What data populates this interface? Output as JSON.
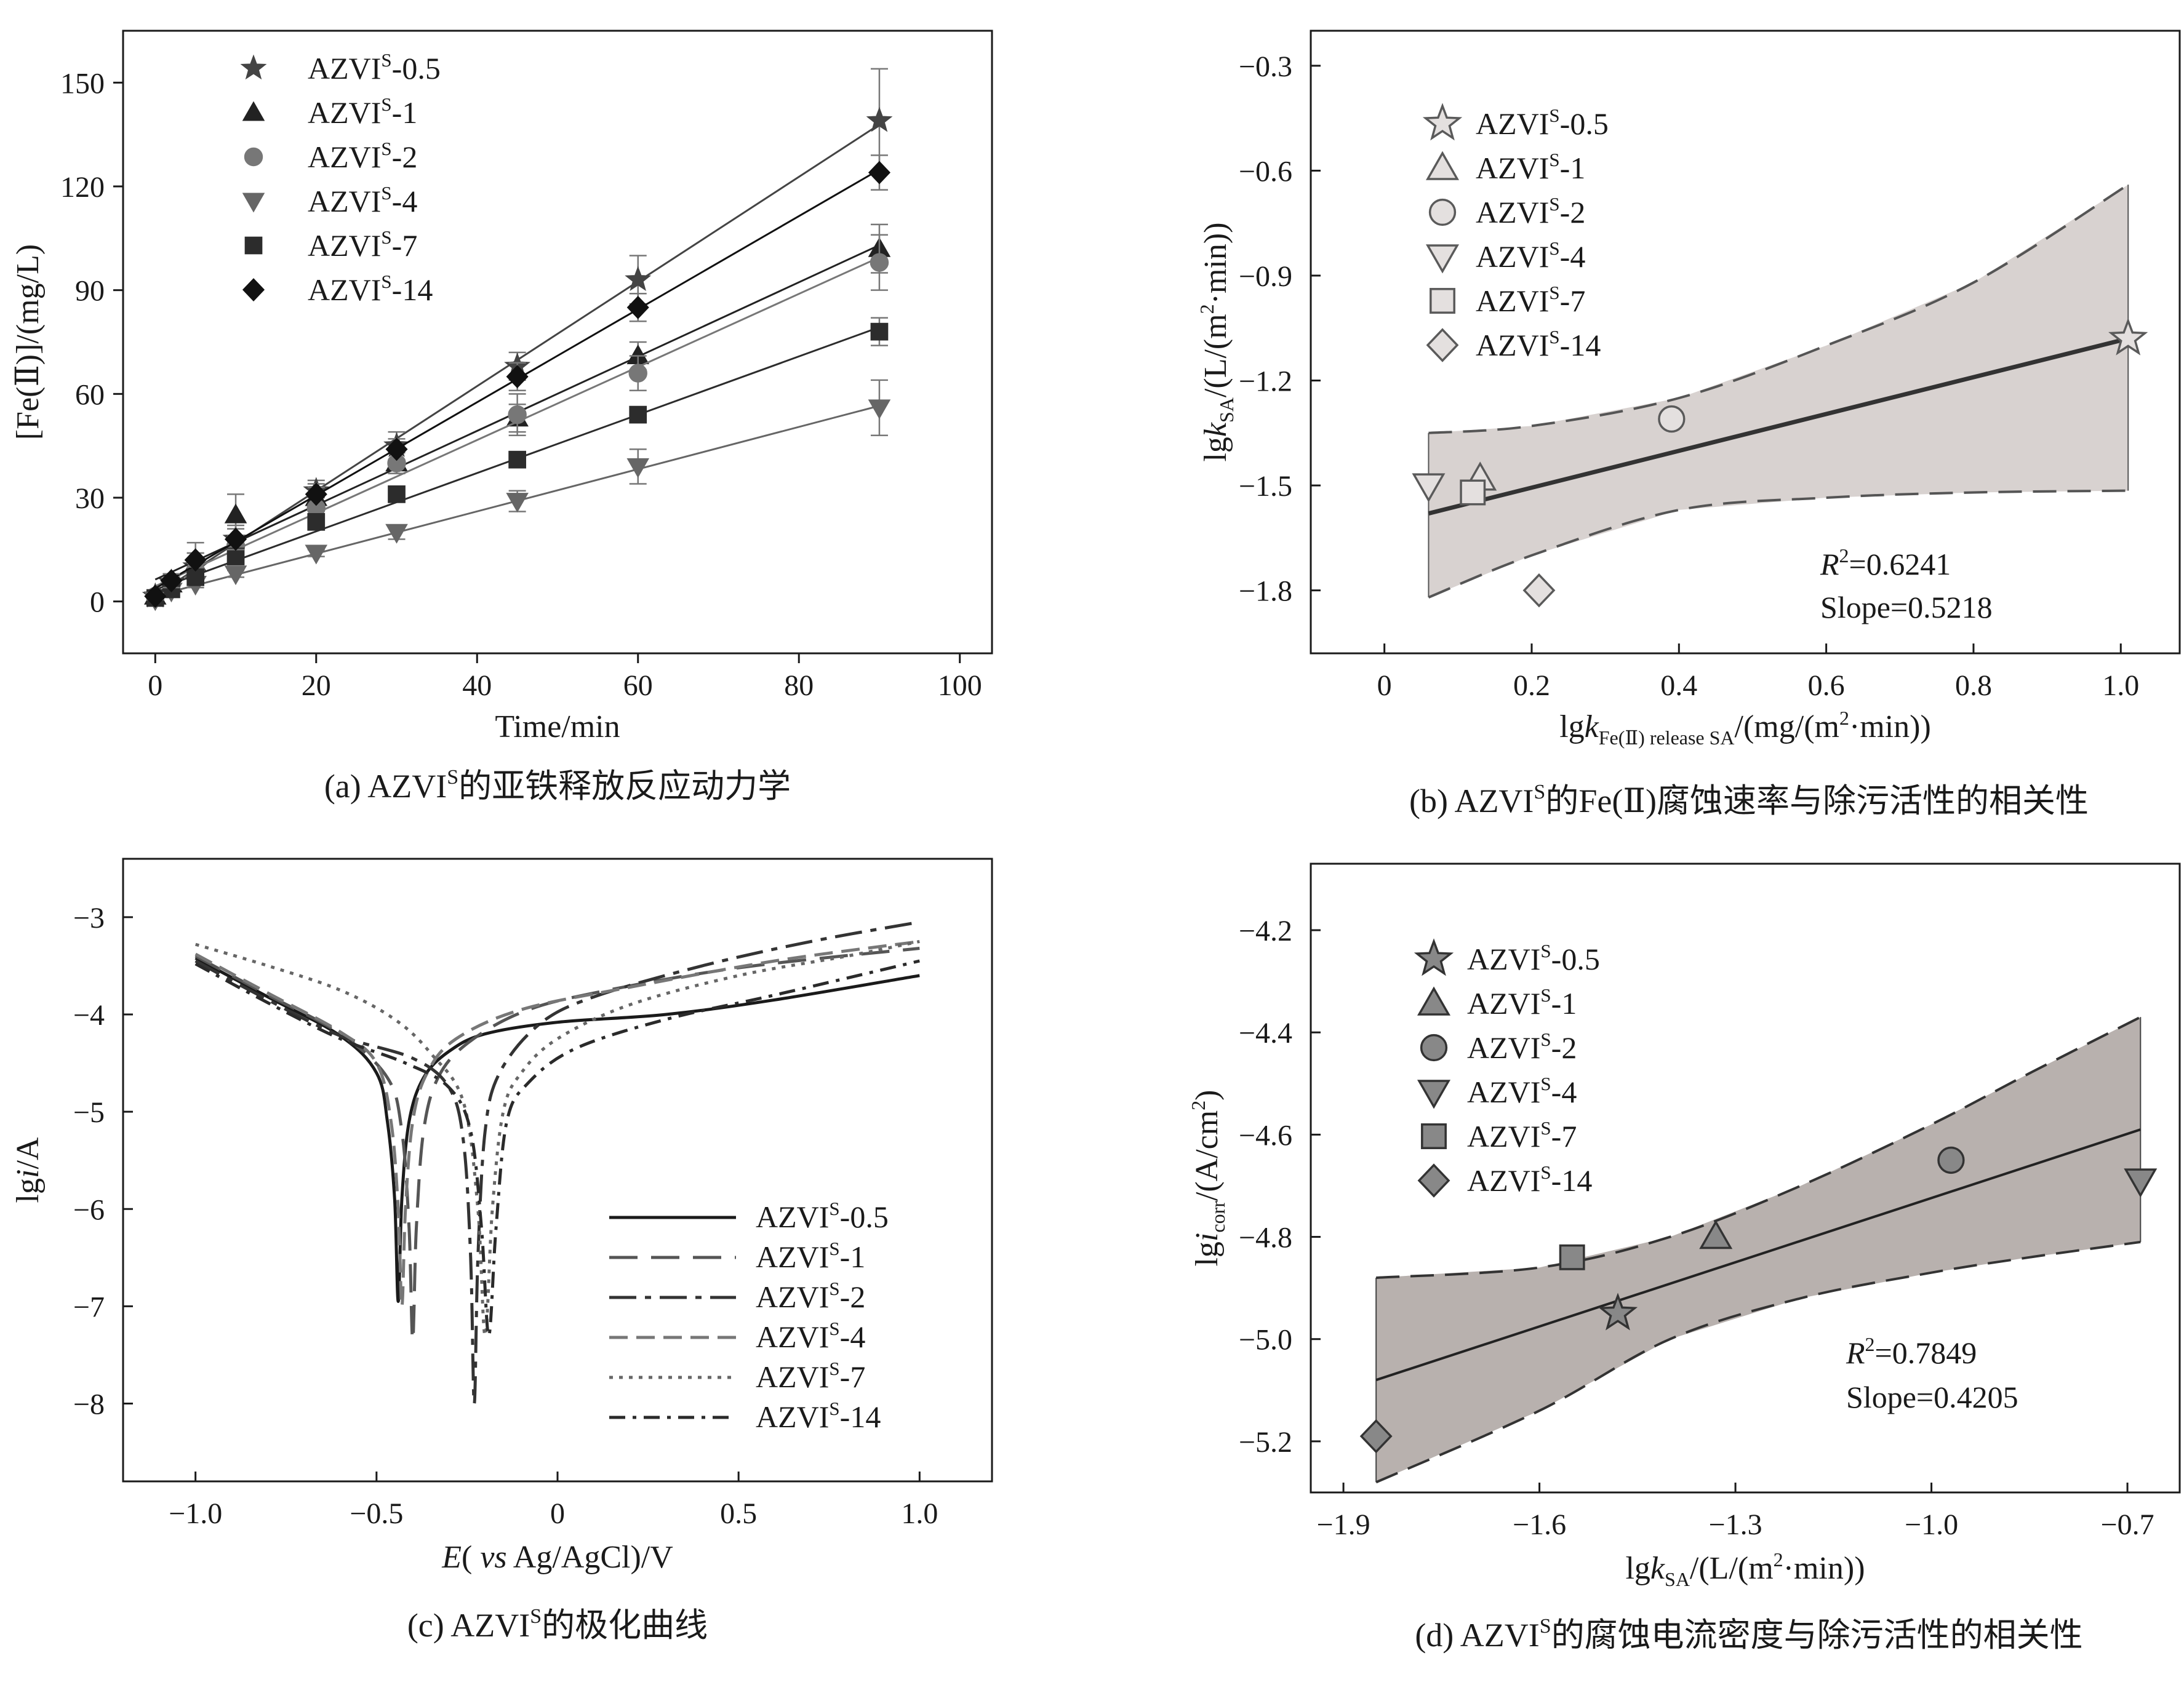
{
  "chart_data": [
    {
      "id": "a",
      "type": "line",
      "caption": "(a) AZVIˢ的亚铁释放反应动力学",
      "xlabel": "Time/min",
      "ylabel": "[Fe(Ⅱ)]/(mg/L)",
      "xlim": [
        -4,
        104
      ],
      "ylim": [
        -15,
        165
      ],
      "xticks": [
        0,
        20,
        40,
        60,
        80,
        100
      ],
      "yticks": [
        0,
        30,
        60,
        90,
        120,
        150
      ],
      "x": [
        0,
        2,
        5,
        10,
        20,
        30,
        45,
        60,
        90
      ],
      "series": [
        {
          "name": "AZVIˢ-0.5",
          "marker": "star",
          "values": [
            1.5,
            5.5,
            10,
            18,
            32,
            45,
            68,
            93,
            139
          ],
          "error": [
            1,
            2,
            4,
            4,
            3,
            4,
            4,
            7,
            15
          ]
        },
        {
          "name": "AZVIˢ-1",
          "marker": "triangle-up",
          "values": [
            1.5,
            5,
            11,
            25,
            30,
            40,
            53,
            71,
            102
          ],
          "error": [
            1,
            2,
            6,
            6,
            3,
            3,
            4,
            4,
            7
          ]
        },
        {
          "name": "AZVIˢ-2",
          "marker": "circle",
          "values": [
            1.5,
            5,
            9,
            16,
            27,
            40,
            54,
            66,
            98
          ],
          "error": [
            1,
            2,
            2,
            2,
            3,
            3,
            6,
            5,
            8
          ]
        },
        {
          "name": "AZVIˢ-4",
          "marker": "triangle-down",
          "values": [
            0.5,
            3,
            5,
            8,
            14,
            20,
            29,
            39,
            56
          ],
          "error": [
            1,
            1,
            1,
            1,
            1,
            2,
            3,
            5,
            8
          ]
        },
        {
          "name": "AZVIˢ-7",
          "marker": "square",
          "values": [
            1,
            3.5,
            7,
            13,
            23,
            31,
            41,
            54,
            78
          ],
          "error": [
            1,
            1,
            1,
            2,
            2,
            2,
            2,
            2,
            4
          ]
        },
        {
          "name": "AZVIˢ-14",
          "marker": "diamond",
          "values": [
            1.5,
            6,
            12,
            18,
            31,
            44,
            65,
            85,
            124
          ],
          "error": [
            1,
            2,
            2,
            3,
            3,
            3,
            4,
            4,
            5
          ]
        }
      ]
    },
    {
      "id": "b",
      "type": "scatter",
      "caption": "(b) AZVIˢ的Fe(Ⅱ)腐蚀速率与除污活性的相关性",
      "xlabel": "lgk_Fe(Ⅱ) release SA/(mg/(m²·min))",
      "ylabel": "lgk_SA/(L/(m²·min))",
      "xlim": [
        -0.1,
        1.08
      ],
      "ylim": [
        -1.98,
        -0.2
      ],
      "xticks": [
        0,
        0.2,
        0.4,
        0.6,
        0.8,
        1.0
      ],
      "xtick_labels": [
        "0",
        "0.2",
        "0.4",
        "0.6",
        "0.8",
        "1.0"
      ],
      "yticks": [
        -1.8,
        -1.5,
        -1.2,
        -0.9,
        -0.6,
        -0.3
      ],
      "ytick_labels": [
        "−1.8",
        "−1.5",
        "−1.2",
        "−0.9",
        "−0.6",
        "−0.3"
      ],
      "points": [
        {
          "name": "AZVIˢ-0.5",
          "marker": "star",
          "x": 1.01,
          "y": -1.08
        },
        {
          "name": "AZVIˢ-1",
          "marker": "triangle-up",
          "x": 0.13,
          "y": -1.48
        },
        {
          "name": "AZVIˢ-2",
          "marker": "circle",
          "x": 0.39,
          "y": -1.31
        },
        {
          "name": "AZVIˢ-4",
          "marker": "triangle-down",
          "x": 0.06,
          "y": -1.5
        },
        {
          "name": "AZVIˢ-7",
          "marker": "square",
          "x": 0.12,
          "y": -1.52
        },
        {
          "name": "AZVIˢ-14",
          "marker": "diamond",
          "x": 0.21,
          "y": -1.8
        }
      ],
      "fit": {
        "x": [
          0.06,
          1.01
        ],
        "y": [
          -1.58,
          -1.08
        ]
      },
      "band_upper": {
        "x": [
          0.06,
          0.2,
          0.4,
          0.6,
          0.8,
          1.01
        ],
        "y": [
          -1.35,
          -1.33,
          -1.25,
          -1.1,
          -0.92,
          -0.64
        ]
      },
      "band_lower": {
        "x": [
          0.06,
          0.2,
          0.4,
          0.6,
          0.8,
          1.01
        ],
        "y": [
          -1.82,
          -1.7,
          -1.57,
          -1.535,
          -1.52,
          -1.515
        ]
      },
      "stats": {
        "r2_label": "R",
        "r2_sup": "2",
        "r2_value": "=0.6241",
        "slope": "Slope=0.5218"
      }
    },
    {
      "id": "c",
      "type": "line",
      "caption": "(c) AZVIˢ的极化曲线",
      "xlabel_italic": "E",
      "xlabel_rest": "( vs Ag/AgCl)/V",
      "ylabel_italic": "i",
      "ylabel": "lgi/A",
      "xlim": [
        -1.2,
        1.2
      ],
      "ylim": [
        -8.8,
        -2.4
      ],
      "xticks": [
        -1.0,
        -0.5,
        0,
        0.5,
        1.0
      ],
      "xtick_labels": [
        "−1.0",
        "−0.5",
        "0",
        "0.5",
        "1.0"
      ],
      "yticks": [
        -8,
        -7,
        -6,
        -5,
        -4,
        -3
      ],
      "ytick_labels": [
        "−8",
        "−7",
        "−6",
        "−5",
        "−4",
        "−3"
      ],
      "series": [
        {
          "name": "AZVIˢ-0.5",
          "dash": "solid",
          "ecorr": -0.44,
          "imin": -6.95,
          "left": [
            [
              -1.0,
              -3.42
            ],
            [
              -0.8,
              -3.82
            ],
            [
              -0.6,
              -4.22
            ],
            [
              -0.5,
              -4.6
            ],
            [
              -0.47,
              -5.1
            ],
            [
              -0.45,
              -5.9
            ]
          ],
          "right": [
            [
              -0.43,
              -5.9
            ],
            [
              -0.41,
              -5.1
            ],
            [
              -0.37,
              -4.65
            ],
            [
              -0.3,
              -4.38
            ],
            [
              -0.2,
              -4.2
            ],
            [
              0,
              -4.08
            ],
            [
              0.3,
              -4.0
            ],
            [
              0.6,
              -3.85
            ],
            [
              1.0,
              -3.6
            ]
          ]
        },
        {
          "name": "AZVIˢ-1",
          "dash": "longdash",
          "ecorr": -0.4,
          "imin": -7.35,
          "left": [
            [
              -1.0,
              -3.4
            ],
            [
              -0.8,
              -3.8
            ],
            [
              -0.6,
              -4.2
            ],
            [
              -0.47,
              -4.65
            ],
            [
              -0.43,
              -5.2
            ],
            [
              -0.41,
              -6.2
            ]
          ],
          "right": [
            [
              -0.39,
              -6.2
            ],
            [
              -0.37,
              -5.2
            ],
            [
              -0.33,
              -4.65
            ],
            [
              -0.25,
              -4.3
            ],
            [
              -0.1,
              -3.98
            ],
            [
              0.1,
              -3.78
            ],
            [
              0.5,
              -3.52
            ],
            [
              1.0,
              -3.32
            ]
          ]
        },
        {
          "name": "AZVIˢ-2",
          "dash": "dashdot-long",
          "ecorr": -0.23,
          "imin": -8.0,
          "left": [
            [
              -1.0,
              -3.45
            ],
            [
              -0.8,
              -3.85
            ],
            [
              -0.6,
              -4.22
            ],
            [
              -0.4,
              -4.45
            ],
            [
              -0.3,
              -4.75
            ],
            [
              -0.26,
              -5.3
            ],
            [
              -0.24,
              -6.5
            ]
          ],
          "right": [
            [
              -0.22,
              -6.5
            ],
            [
              -0.2,
              -5.2
            ],
            [
              -0.16,
              -4.6
            ],
            [
              -0.05,
              -4.1
            ],
            [
              0.1,
              -3.82
            ],
            [
              0.4,
              -3.5
            ],
            [
              0.7,
              -3.25
            ],
            [
              1.0,
              -3.05
            ]
          ]
        },
        {
          "name": "AZVIˢ-4",
          "dash": "dash",
          "ecorr": -0.43,
          "imin": -7.0,
          "left": [
            [
              -1.0,
              -3.38
            ],
            [
              -0.8,
              -3.78
            ],
            [
              -0.6,
              -4.18
            ],
            [
              -0.5,
              -4.5
            ],
            [
              -0.46,
              -5.1
            ],
            [
              -0.44,
              -6.0
            ]
          ],
          "right": [
            [
              -0.42,
              -6.0
            ],
            [
              -0.4,
              -5.1
            ],
            [
              -0.36,
              -4.6
            ],
            [
              -0.28,
              -4.25
            ],
            [
              -0.1,
              -3.95
            ],
            [
              0.2,
              -3.72
            ],
            [
              0.6,
              -3.45
            ],
            [
              1.0,
              -3.25
            ]
          ]
        },
        {
          "name": "AZVIˢ-7",
          "dash": "dotted",
          "ecorr": -0.2,
          "imin": -7.3,
          "left": [
            [
              -1.0,
              -3.28
            ],
            [
              -0.8,
              -3.5
            ],
            [
              -0.6,
              -3.75
            ],
            [
              -0.45,
              -4.05
            ],
            [
              -0.35,
              -4.4
            ],
            [
              -0.26,
              -4.9
            ],
            [
              -0.22,
              -6.0
            ]
          ],
          "right": [
            [
              -0.18,
              -6.0
            ],
            [
              -0.15,
              -5.0
            ],
            [
              -0.1,
              -4.6
            ],
            [
              0,
              -4.25
            ],
            [
              0.2,
              -3.9
            ],
            [
              0.5,
              -3.6
            ],
            [
              0.8,
              -3.4
            ],
            [
              1.0,
              -3.25
            ]
          ]
        },
        {
          "name": "AZVIˢ-14",
          "dash": "dashdot",
          "ecorr": -0.19,
          "imin": -7.3,
          "left": [
            [
              -1.0,
              -3.48
            ],
            [
              -0.8,
              -3.88
            ],
            [
              -0.6,
              -4.25
            ],
            [
              -0.42,
              -4.5
            ],
            [
              -0.3,
              -4.75
            ],
            [
              -0.24,
              -5.2
            ],
            [
              -0.21,
              -6.2
            ]
          ],
          "right": [
            [
              -0.17,
              -6.2
            ],
            [
              -0.14,
              -5.1
            ],
            [
              -0.08,
              -4.7
            ],
            [
              0.05,
              -4.35
            ],
            [
              0.3,
              -4.05
            ],
            [
              0.6,
              -3.8
            ],
            [
              1.0,
              -3.45
            ]
          ]
        }
      ]
    },
    {
      "id": "d",
      "type": "scatter",
      "caption": "(d) AZVIˢ的腐蚀电流密度与除污活性的相关性",
      "xlabel": "lgk_SA/(L/(m²·min))",
      "ylabel": "lgi_corr/(A/cm²)",
      "xlim": [
        -1.95,
        -0.62
      ],
      "ylim": [
        -5.3,
        -4.07
      ],
      "xticks": [
        -1.9,
        -1.6,
        -1.3,
        -1.0,
        -0.7
      ],
      "xtick_labels": [
        "−1.9",
        "−1.6",
        "−1.3",
        "−1.0",
        "−0.7"
      ],
      "yticks": [
        -5.2,
        -5.0,
        -4.8,
        -4.6,
        -4.4,
        -4.2
      ],
      "ytick_labels": [
        "−5.2",
        "−5.0",
        "−4.8",
        "−4.6",
        "−4.4",
        "−4.2"
      ],
      "points": [
        {
          "name": "AZVIˢ-0.5",
          "marker": "star",
          "x": -1.48,
          "y": -4.95
        },
        {
          "name": "AZVIˢ-1",
          "marker": "triangle-up",
          "x": -1.33,
          "y": -4.8
        },
        {
          "name": "AZVIˢ-2",
          "marker": "circle",
          "x": -0.97,
          "y": -4.65
        },
        {
          "name": "AZVIˢ-4",
          "marker": "triangle-down",
          "x": -0.68,
          "y": -4.69
        },
        {
          "name": "AZVIˢ-7",
          "marker": "square",
          "x": -1.55,
          "y": -4.84
        },
        {
          "name": "AZVIˢ-14",
          "marker": "diamond",
          "x": -1.85,
          "y": -5.19
        }
      ],
      "fit": {
        "x": [
          -1.85,
          -0.68
        ],
        "y": [
          -5.08,
          -4.59
        ]
      },
      "band_upper": {
        "x": [
          -1.85,
          -1.6,
          -1.4,
          -1.2,
          -1.0,
          -0.85,
          -0.68
        ],
        "y": [
          -4.88,
          -4.86,
          -4.8,
          -4.7,
          -4.58,
          -4.48,
          -4.37
        ]
      },
      "band_lower": {
        "x": [
          -1.85,
          -1.6,
          -1.4,
          -1.2,
          -1.0,
          -0.85,
          -0.68
        ],
        "y": [
          -5.28,
          -5.14,
          -5.0,
          -4.92,
          -4.87,
          -4.84,
          -4.81
        ]
      },
      "stats": {
        "r2_label": "R",
        "r2_sup": "2",
        "r2_value": "=0.7849",
        "slope": "Slope=0.4205"
      }
    }
  ],
  "colors": {
    "axis": "#1a1a1a",
    "band_b": "#d8d2d0",
    "band_d": "#b8b1ae",
    "marker_open_stroke": "#5a5a5a",
    "marker_open_fill_b": "#e4e0df",
    "marker_open_fill_d": "#888888",
    "series_a": [
      "#444444",
      "#222222",
      "#777777",
      "#666666",
      "#2c2c2c",
      "#111111"
    ],
    "series_c": [
      "#1a1a1a",
      "#555555",
      "#333333",
      "#777777",
      "#666666",
      "#2a2a2a"
    ]
  }
}
